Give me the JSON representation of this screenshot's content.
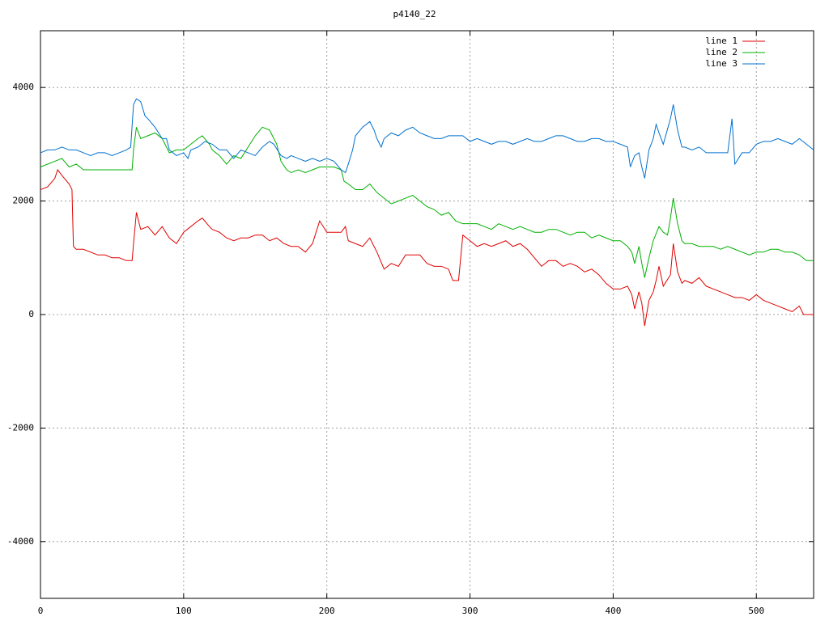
{
  "chart_data": {
    "type": "line",
    "title": "p4140_22",
    "xlim": [
      0,
      540
    ],
    "xticks": [
      0,
      100,
      200,
      300,
      400,
      500
    ],
    "ylim": [
      -5000,
      5000
    ],
    "yticks": [
      -4000,
      -2000,
      0,
      2000,
      4000
    ],
    "grid": true,
    "legend": "top-right",
    "series": [
      {
        "name": "line 1",
        "color": "#e00000",
        "x": [
          0,
          5,
          10,
          12,
          15,
          20,
          22,
          23,
          25,
          30,
          35,
          40,
          45,
          50,
          55,
          60,
          64,
          65,
          67,
          70,
          75,
          80,
          85,
          90,
          95,
          100,
          105,
          110,
          113,
          118,
          120,
          125,
          130,
          135,
          140,
          145,
          150,
          155,
          160,
          165,
          170,
          175,
          180,
          185,
          190,
          195,
          200,
          205,
          210,
          213,
          215,
          220,
          225,
          230,
          235,
          240,
          245,
          250,
          255,
          260,
          265,
          270,
          275,
          280,
          285,
          288,
          292,
          295,
          300,
          305,
          310,
          315,
          320,
          325,
          330,
          335,
          340,
          345,
          350,
          355,
          360,
          365,
          370,
          375,
          380,
          385,
          390,
          395,
          400,
          405,
          410,
          413,
          415,
          418,
          420,
          422,
          425,
          428,
          430,
          432,
          435,
          440,
          442,
          445,
          448,
          450,
          455,
          460,
          465,
          470,
          475,
          480,
          485,
          490,
          495,
          500,
          505,
          510,
          515,
          520,
          525,
          530,
          533,
          540
        ],
        "values": [
          2200,
          2250,
          2400,
          2550,
          2450,
          2300,
          2200,
          1200,
          1150,
          1150,
          1100,
          1050,
          1050,
          1000,
          1000,
          950,
          950,
          1250,
          1800,
          1500,
          1550,
          1400,
          1550,
          1350,
          1250,
          1450,
          1550,
          1650,
          1700,
          1550,
          1500,
          1450,
          1350,
          1300,
          1350,
          1350,
          1400,
          1400,
          1300,
          1350,
          1250,
          1200,
          1200,
          1100,
          1250,
          1650,
          1450,
          1450,
          1450,
          1550,
          1300,
          1250,
          1200,
          1350,
          1100,
          800,
          900,
          850,
          1050,
          1050,
          1050,
          900,
          850,
          850,
          800,
          600,
          600,
          1400,
          1300,
          1200,
          1250,
          1200,
          1250,
          1300,
          1200,
          1250,
          1150,
          1000,
          850,
          950,
          950,
          850,
          900,
          850,
          750,
          800,
          700,
          550,
          450,
          450,
          500,
          350,
          100,
          400,
          200,
          -200,
          250,
          400,
          600,
          850,
          500,
          700,
          1250,
          750,
          550,
          600,
          550,
          650,
          500,
          450,
          400,
          350,
          300,
          300,
          250,
          350,
          250,
          200,
          150,
          100,
          50,
          150,
          0,
          0
        ]
      },
      {
        "name": "line 2",
        "color": "#00b000",
        "x": [
          0,
          10,
          15,
          20,
          25,
          30,
          40,
          50,
          64,
          65,
          67,
          70,
          75,
          80,
          85,
          90,
          95,
          100,
          105,
          110,
          113,
          118,
          120,
          125,
          130,
          135,
          140,
          145,
          150,
          155,
          160,
          165,
          168,
          172,
          175,
          180,
          185,
          190,
          195,
          200,
          205,
          210,
          212,
          215,
          220,
          225,
          230,
          235,
          240,
          245,
          250,
          255,
          260,
          265,
          270,
          275,
          280,
          285,
          290,
          295,
          300,
          305,
          310,
          315,
          320,
          325,
          330,
          335,
          340,
          345,
          350,
          355,
          360,
          365,
          370,
          375,
          380,
          385,
          390,
          395,
          400,
          405,
          410,
          413,
          415,
          418,
          420,
          422,
          425,
          428,
          432,
          435,
          438,
          440,
          442,
          445,
          448,
          450,
          455,
          460,
          470,
          475,
          480,
          485,
          490,
          495,
          500,
          505,
          510,
          515,
          520,
          525,
          530,
          535,
          540
        ],
        "values": [
          2600,
          2700,
          2750,
          2600,
          2650,
          2550,
          2550,
          2550,
          2550,
          2900,
          3300,
          3100,
          3150,
          3200,
          3100,
          2850,
          2900,
          2900,
          3000,
          3100,
          3150,
          3000,
          2900,
          2800,
          2650,
          2800,
          2750,
          2950,
          3150,
          3300,
          3250,
          3000,
          2700,
          2550,
          2500,
          2550,
          2500,
          2550,
          2600,
          2600,
          2600,
          2550,
          2350,
          2300,
          2200,
          2200,
          2300,
          2150,
          2050,
          1950,
          2000,
          2050,
          2100,
          2000,
          1900,
          1850,
          1750,
          1800,
          1650,
          1600,
          1600,
          1600,
          1550,
          1500,
          1600,
          1550,
          1500,
          1550,
          1500,
          1450,
          1450,
          1500,
          1500,
          1450,
          1400,
          1450,
          1450,
          1350,
          1400,
          1350,
          1300,
          1300,
          1200,
          1100,
          900,
          1200,
          900,
          650,
          1000,
          1300,
          1550,
          1450,
          1400,
          1700,
          2050,
          1600,
          1300,
          1250,
          1250,
          1200,
          1200,
          1150,
          1200,
          1150,
          1100,
          1050,
          1100,
          1100,
          1150,
          1150,
          1100,
          1100,
          1050,
          950,
          950
        ]
      },
      {
        "name": "line 3",
        "color": "#0070d0",
        "x": [
          0,
          5,
          10,
          15,
          20,
          25,
          30,
          35,
          40,
          45,
          50,
          55,
          60,
          63,
          65,
          67,
          70,
          73,
          75,
          80,
          85,
          88,
          90,
          95,
          100,
          103,
          105,
          110,
          115,
          120,
          125,
          130,
          135,
          140,
          145,
          150,
          155,
          160,
          163,
          168,
          172,
          175,
          180,
          185,
          190,
          195,
          200,
          205,
          210,
          213,
          215,
          218,
          220,
          225,
          230,
          233,
          235,
          238,
          240,
          245,
          250,
          255,
          260,
          265,
          270,
          275,
          280,
          285,
          290,
          295,
          300,
          305,
          310,
          315,
          320,
          325,
          330,
          335,
          340,
          345,
          350,
          355,
          360,
          365,
          370,
          375,
          380,
          385,
          390,
          395,
          400,
          405,
          410,
          412,
          415,
          418,
          420,
          422,
          425,
          428,
          430,
          432,
          435,
          440,
          442,
          445,
          448,
          450,
          455,
          460,
          465,
          470,
          475,
          480,
          483,
          485,
          490,
          495,
          500,
          505,
          510,
          515,
          520,
          525,
          530,
          535,
          540
        ],
        "values": [
          2850,
          2900,
          2900,
          2950,
          2900,
          2900,
          2850,
          2800,
          2850,
          2850,
          2800,
          2850,
          2900,
          2950,
          3700,
          3800,
          3750,
          3500,
          3450,
          3300,
          3100,
          3100,
          2900,
          2800,
          2850,
          2750,
          2900,
          2950,
          3050,
          3000,
          2900,
          2900,
          2750,
          2900,
          2850,
          2800,
          2950,
          3050,
          3000,
          2800,
          2750,
          2800,
          2750,
          2700,
          2750,
          2700,
          2750,
          2700,
          2550,
          2500,
          2650,
          2900,
          3150,
          3300,
          3400,
          3250,
          3100,
          2950,
          3100,
          3200,
          3150,
          3250,
          3300,
          3200,
          3150,
          3100,
          3100,
          3150,
          3150,
          3150,
          3050,
          3100,
          3050,
          3000,
          3050,
          3050,
          3000,
          3050,
          3100,
          3050,
          3050,
          3100,
          3150,
          3150,
          3100,
          3050,
          3050,
          3100,
          3100,
          3050,
          3050,
          3000,
          2950,
          2600,
          2800,
          2850,
          2600,
          2400,
          2900,
          3100,
          3350,
          3200,
          3000,
          3450,
          3700,
          3250,
          2950,
          2950,
          2900,
          2950,
          2850,
          2850,
          2850,
          2850,
          3450,
          2650,
          2850,
          2850,
          3000,
          3050,
          3050,
          3100,
          3050,
          3000,
          3100,
          3000,
          2900
        ]
      }
    ]
  }
}
